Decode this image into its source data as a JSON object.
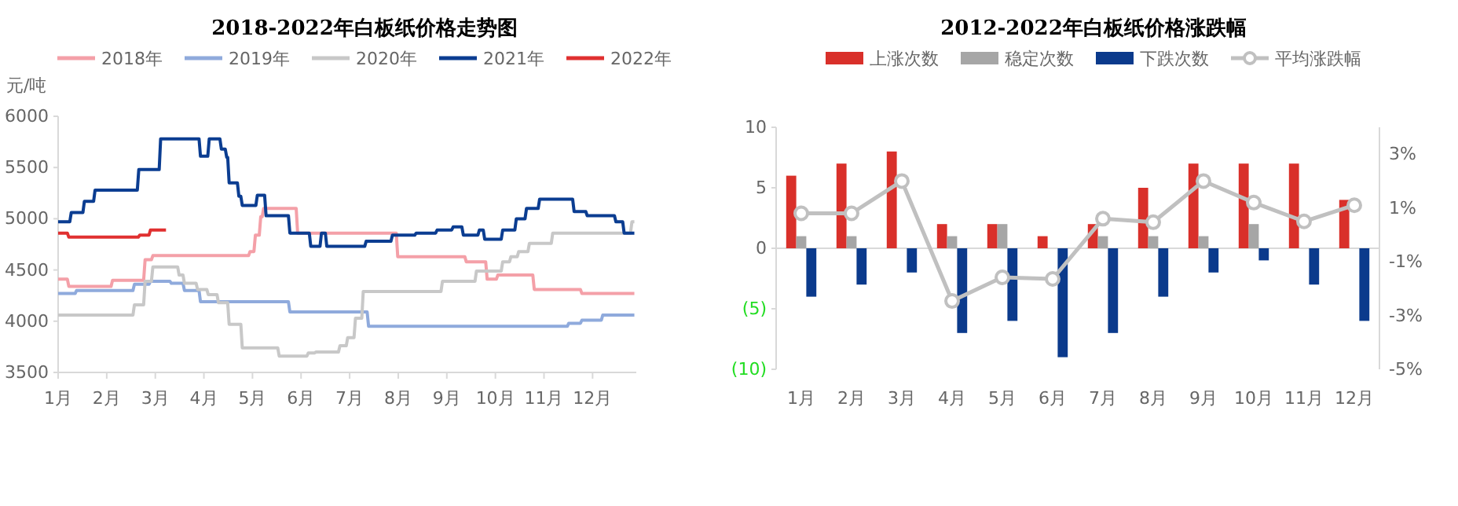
{
  "chart_data": [
    {
      "type": "line",
      "title": "2018-2022年白板纸价格走势图",
      "ylabel": "元/吨",
      "legend": "top",
      "xlim": [
        1,
        12.9
      ],
      "ylim": [
        3500,
        6000
      ],
      "xticks": [
        {
          "value": 1,
          "label": "1月"
        },
        {
          "value": 2,
          "label": "2月"
        },
        {
          "value": 3,
          "label": "3月"
        },
        {
          "value": 4,
          "label": "4月"
        },
        {
          "value": 5,
          "label": "5月"
        },
        {
          "value": 6,
          "label": "6月"
        },
        {
          "value": 7,
          "label": "7月"
        },
        {
          "value": 8,
          "label": "8月"
        },
        {
          "value": 9,
          "label": "9月"
        },
        {
          "value": 10,
          "label": "10月"
        },
        {
          "value": 11,
          "label": "11月"
        },
        {
          "value": 12,
          "label": "12月"
        }
      ],
      "yticks": [
        3500,
        4000,
        4500,
        5000,
        5500,
        6000
      ],
      "series": [
        {
          "name": "2018年",
          "color": "#f4a0a8",
          "x": [
            1,
            1.19,
            1.22,
            2.09,
            2.12,
            2.76,
            2.79,
            2.92,
            2.95,
            4.92,
            4.95,
            5.03,
            5.06,
            5.14,
            5.17,
            5.2,
            5.23,
            5.9,
            5.93,
            7.96,
            7.99,
            9.37,
            9.4,
            9.8,
            9.83,
            10.02,
            10.05,
            10.77,
            10.8,
            11.75,
            11.78,
            12.86
          ],
          "values": [
            4410,
            4410,
            4340,
            4340,
            4400,
            4400,
            4600,
            4600,
            4640,
            4640,
            4680,
            4680,
            4840,
            4840,
            5020,
            5020,
            5100,
            5100,
            4860,
            4860,
            4630,
            4630,
            4580,
            4580,
            4410,
            4410,
            4450,
            4450,
            4310,
            4310,
            4270,
            4270
          ]
        },
        {
          "name": "2019年",
          "color": "#8faadc",
          "x": [
            1,
            1.35,
            1.38,
            2.54,
            2.57,
            2.87,
            2.9,
            3.3,
            3.33,
            3.57,
            3.6,
            3.9,
            3.93,
            5.74,
            5.77,
            7.36,
            7.39,
            11.48,
            11.51,
            11.75,
            11.78,
            12.18,
            12.21,
            12.86
          ],
          "values": [
            4270,
            4270,
            4300,
            4300,
            4360,
            4360,
            4390,
            4390,
            4370,
            4370,
            4300,
            4300,
            4190,
            4190,
            4090,
            4090,
            3950,
            3950,
            3980,
            3980,
            4010,
            4010,
            4060,
            4060
          ]
        },
        {
          "name": "2020年",
          "color": "#c8c8c8",
          "x": [
            1,
            2.54,
            2.57,
            2.76,
            2.79,
            2.92,
            2.95,
            3.46,
            3.49,
            3.57,
            3.6,
            3.84,
            3.87,
            4.06,
            4.09,
            4.27,
            4.3,
            4.49,
            4.52,
            4.76,
            4.79,
            5.52,
            5.55,
            6.12,
            6.15,
            6.28,
            6.31,
            6.77,
            6.8,
            6.93,
            6.96,
            7.09,
            7.12,
            7.25,
            7.28,
            8.88,
            8.91,
            9.58,
            9.61,
            10.12,
            10.15,
            10.29,
            10.32,
            10.45,
            10.48,
            10.67,
            10.7,
            11.15,
            11.18,
            12.78,
            12.81,
            12.86
          ],
          "values": [
            4060,
            4060,
            4160,
            4160,
            4390,
            4390,
            4530,
            4530,
            4450,
            4450,
            4370,
            4370,
            4310,
            4310,
            4260,
            4260,
            4180,
            4180,
            3970,
            3970,
            3740,
            3740,
            3660,
            3660,
            3690,
            3690,
            3700,
            3700,
            3760,
            3760,
            3840,
            3840,
            4030,
            4030,
            4290,
            4290,
            4390,
            4390,
            4490,
            4490,
            4580,
            4580,
            4630,
            4630,
            4680,
            4680,
            4760,
            4760,
            4860,
            4860,
            4970,
            4970
          ]
        },
        {
          "name": "2021年",
          "color": "#0b3d91",
          "x": [
            1,
            1.24,
            1.27,
            1.51,
            1.54,
            1.73,
            1.76,
            2.63,
            2.66,
            3.08,
            3.11,
            3.9,
            3.93,
            4.08,
            4.11,
            4.33,
            4.36,
            4.44,
            4.47,
            4.49,
            4.52,
            4.69,
            4.72,
            4.76,
            4.79,
            5.07,
            5.1,
            5.25,
            5.28,
            5.74,
            5.77,
            6.17,
            6.2,
            6.39,
            6.42,
            6.5,
            6.53,
            7.31,
            7.34,
            7.85,
            7.88,
            8.34,
            8.37,
            8.77,
            8.8,
            9.1,
            9.13,
            9.31,
            9.34,
            9.64,
            9.67,
            9.75,
            9.78,
            10.12,
            10.15,
            10.4,
            10.43,
            10.61,
            10.64,
            10.88,
            10.91,
            11.59,
            11.62,
            11.86,
            11.89,
            12.45,
            12.48,
            12.62,
            12.65,
            12.86
          ],
          "values": [
            4970,
            4970,
            5060,
            5060,
            5170,
            5170,
            5280,
            5280,
            5480,
            5480,
            5780,
            5780,
            5610,
            5610,
            5780,
            5780,
            5680,
            5680,
            5600,
            5600,
            5350,
            5350,
            5220,
            5220,
            5130,
            5130,
            5230,
            5230,
            5030,
            5030,
            4860,
            4860,
            4730,
            4730,
            4860,
            4860,
            4730,
            4730,
            4780,
            4780,
            4840,
            4840,
            4860,
            4860,
            4890,
            4890,
            4920,
            4920,
            4840,
            4840,
            4890,
            4890,
            4800,
            4800,
            4890,
            4890,
            5000,
            5000,
            5100,
            5100,
            5190,
            5190,
            5070,
            5070,
            5030,
            5030,
            4970,
            4970,
            4860,
            4860
          ]
        },
        {
          "name": "2022年",
          "color": "#e03030",
          "x": [
            1,
            1.19,
            1.22,
            2.65,
            2.68,
            2.87,
            2.9,
            3.22
          ],
          "values": [
            4860,
            4860,
            4820,
            4820,
            4840,
            4840,
            4890,
            4890
          ]
        }
      ]
    },
    {
      "type": "bar",
      "title": "2012-2022年白板纸价格涨跌幅",
      "legend": "top",
      "categories": [
        "1月",
        "2月",
        "3月",
        "4月",
        "5月",
        "6月",
        "7月",
        "8月",
        "9月",
        "10月",
        "11月",
        "12月"
      ],
      "ylim": [
        -10,
        10
      ],
      "yticks": [
        {
          "value": -10,
          "label": "(10)"
        },
        {
          "value": -5,
          "label": "(5)"
        },
        0,
        5,
        10
      ],
      "y2lim": [
        -5,
        4
      ],
      "y2ticks": [
        {
          "value": -5,
          "label": "-5%"
        },
        {
          "value": -3,
          "label": "-3%"
        },
        {
          "value": -1,
          "label": "-1%"
        },
        {
          "value": 1,
          "label": "1%"
        },
        {
          "value": 3,
          "label": "3%"
        }
      ],
      "series": [
        {
          "name": "上涨次数",
          "color": "#d9302a",
          "values": [
            6,
            7,
            8,
            2,
            2,
            1,
            2,
            5,
            7,
            7,
            7,
            4
          ]
        },
        {
          "name": "稳定次数",
          "color": "#a6a6a6",
          "values": [
            1,
            1,
            0,
            1,
            2,
            0,
            1,
            1,
            1,
            2,
            0,
            0
          ]
        },
        {
          "name": "下跌次数",
          "color": "#0b3a8c",
          "values": [
            -4,
            -3,
            -2,
            -7,
            -6,
            -9,
            -7,
            -4,
            -2,
            -1,
            -3,
            -6
          ]
        },
        {
          "name": "平均涨跌幅",
          "type": "line",
          "axis": "y2",
          "marker": "circle",
          "color": "#c0c0c0",
          "values": [
            0.8,
            0.8,
            2.0,
            -2.46,
            -1.58,
            -1.64,
            0.6,
            0.47,
            2.0,
            1.2,
            0.5,
            1.1
          ]
        }
      ]
    }
  ]
}
